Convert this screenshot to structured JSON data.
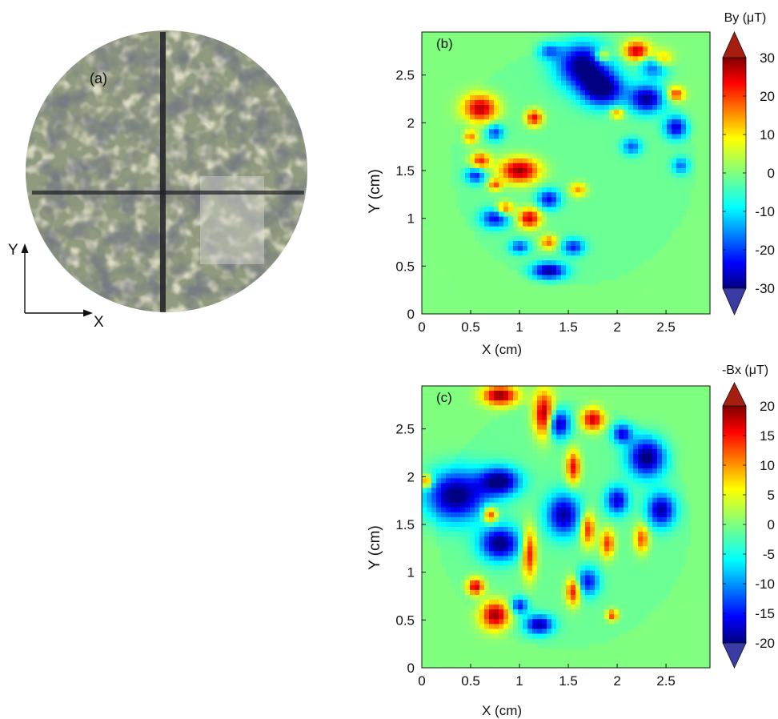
{
  "figure": {
    "panel_a": {
      "label": "(a)",
      "axis_x_label": "X",
      "axis_y_label": "Y"
    }
  },
  "chart_data": [
    {
      "type": "heatmap",
      "panel_label": "(b)",
      "title": "",
      "xlabel": "X (cm)",
      "ylabel": "Y (cm)",
      "xlim": [
        0,
        2.95
      ],
      "ylim": [
        0,
        2.95
      ],
      "x_ticks": [
        0,
        0.5,
        1,
        1.5,
        2,
        2.5
      ],
      "x_tick_labels": [
        "0",
        "0.5",
        "1",
        "1.5",
        "2",
        "2.5"
      ],
      "y_ticks": [
        0,
        0.5,
        1,
        1.5,
        2,
        2.5
      ],
      "y_tick_labels": [
        "0",
        "0.5",
        "1",
        "1.5",
        "2",
        "2.5"
      ],
      "colorbar": {
        "label": "By (μT)",
        "range": [
          -30,
          30
        ],
        "ticks": [
          -30,
          -20,
          -10,
          0,
          10,
          20,
          30
        ],
        "tick_labels": [
          "-30",
          "-20",
          "-10",
          "0",
          "10",
          "20",
          "30"
        ],
        "colormap": "jet",
        "extend": "both"
      },
      "background_value": 0,
      "sample_disk": {
        "center": [
          1.55,
          1.55
        ],
        "radius": 1.25
      },
      "features": [
        {
          "x": 0.6,
          "y": 2.15,
          "value": 28,
          "sx": 0.12,
          "sy": 0.1
        },
        {
          "x": 1.0,
          "y": 1.5,
          "value": 30,
          "sx": 0.14,
          "sy": 0.09
        },
        {
          "x": 1.15,
          "y": 2.05,
          "value": 24,
          "sx": 0.06,
          "sy": 0.06
        },
        {
          "x": 1.1,
          "y": 1.0,
          "value": 27,
          "sx": 0.08,
          "sy": 0.07
        },
        {
          "x": 0.6,
          "y": 1.6,
          "value": 22,
          "sx": 0.07,
          "sy": 0.06
        },
        {
          "x": 2.2,
          "y": 2.75,
          "value": 26,
          "sx": 0.09,
          "sy": 0.07
        },
        {
          "x": 2.45,
          "y": 2.65,
          "value": 24,
          "sx": 0.08,
          "sy": 0.07
        },
        {
          "x": 1.85,
          "y": 2.7,
          "value": 18,
          "sx": 0.06,
          "sy": 0.05
        },
        {
          "x": 0.85,
          "y": 1.1,
          "value": 20,
          "sx": 0.06,
          "sy": 0.05
        },
        {
          "x": 1.3,
          "y": 0.75,
          "value": 18,
          "sx": 0.06,
          "sy": 0.05
        },
        {
          "x": 2.6,
          "y": 2.3,
          "value": 20,
          "sx": 0.06,
          "sy": 0.05
        },
        {
          "x": 0.75,
          "y": 1.35,
          "value": 18,
          "sx": 0.05,
          "sy": 0.04
        },
        {
          "x": 0.5,
          "y": 1.85,
          "value": 16,
          "sx": 0.05,
          "sy": 0.05
        },
        {
          "x": 1.6,
          "y": 1.3,
          "value": 15,
          "sx": 0.06,
          "sy": 0.05
        },
        {
          "x": 2.0,
          "y": 2.1,
          "value": 16,
          "sx": 0.05,
          "sy": 0.04
        },
        {
          "x": 1.65,
          "y": 2.6,
          "value": -30,
          "sx": 0.18,
          "sy": 0.16
        },
        {
          "x": 1.85,
          "y": 2.35,
          "value": -30,
          "sx": 0.15,
          "sy": 0.12
        },
        {
          "x": 2.3,
          "y": 2.25,
          "value": -28,
          "sx": 0.12,
          "sy": 0.1
        },
        {
          "x": 2.4,
          "y": 2.6,
          "value": -26,
          "sx": 0.1,
          "sy": 0.08
        },
        {
          "x": 2.6,
          "y": 1.95,
          "value": -24,
          "sx": 0.08,
          "sy": 0.08
        },
        {
          "x": 1.3,
          "y": 0.45,
          "value": -28,
          "sx": 0.12,
          "sy": 0.06
        },
        {
          "x": 0.75,
          "y": 1.0,
          "value": -22,
          "sx": 0.1,
          "sy": 0.07
        },
        {
          "x": 0.55,
          "y": 1.45,
          "value": -20,
          "sx": 0.07,
          "sy": 0.06
        },
        {
          "x": 0.75,
          "y": 1.9,
          "value": -18,
          "sx": 0.06,
          "sy": 0.06
        },
        {
          "x": 1.3,
          "y": 1.2,
          "value": -22,
          "sx": 0.08,
          "sy": 0.07
        },
        {
          "x": 1.55,
          "y": 0.7,
          "value": -20,
          "sx": 0.08,
          "sy": 0.06
        },
        {
          "x": 1.0,
          "y": 0.7,
          "value": -18,
          "sx": 0.07,
          "sy": 0.05
        },
        {
          "x": 2.15,
          "y": 1.75,
          "value": -16,
          "sx": 0.07,
          "sy": 0.06
        },
        {
          "x": 1.3,
          "y": 2.75,
          "value": -14,
          "sx": 0.08,
          "sy": 0.06
        },
        {
          "x": 2.65,
          "y": 1.55,
          "value": -15,
          "sx": 0.06,
          "sy": 0.06
        }
      ]
    },
    {
      "type": "heatmap",
      "panel_label": "(c)",
      "title": "",
      "xlabel": "X (cm)",
      "ylabel": "Y (cm)",
      "xlim": [
        0,
        2.95
      ],
      "ylim": [
        0,
        2.95
      ],
      "x_ticks": [
        0,
        0.5,
        1,
        1.5,
        2,
        2.5
      ],
      "x_tick_labels": [
        "0",
        "0.5",
        "1",
        "1.5",
        "2",
        "2.5"
      ],
      "y_ticks": [
        0,
        0.5,
        1,
        1.5,
        2,
        2.5
      ],
      "y_tick_labels": [
        "0",
        "0.5",
        "1",
        "1.5",
        "2",
        "2.5"
      ],
      "colorbar": {
        "label": "-Bx (μT)",
        "range": [
          -20,
          20
        ],
        "ticks": [
          -20,
          -15,
          -10,
          -5,
          0,
          5,
          10,
          15,
          20
        ],
        "tick_labels": [
          "-20",
          "-15",
          "-10",
          "-5",
          "0",
          "5",
          "10",
          "15",
          "20"
        ],
        "colormap": "jet",
        "extend": "both"
      },
      "background_value": 0,
      "sample_disk": {
        "center": [
          1.45,
          1.5
        ],
        "radius": 1.3
      },
      "features": [
        {
          "x": 0.35,
          "y": 1.8,
          "value": -20,
          "sx": 0.22,
          "sy": 0.18
        },
        {
          "x": 0.8,
          "y": 1.95,
          "value": -20,
          "sx": 0.14,
          "sy": 0.1
        },
        {
          "x": 0.8,
          "y": 1.3,
          "value": -20,
          "sx": 0.14,
          "sy": 0.12
        },
        {
          "x": 1.45,
          "y": 1.6,
          "value": -18,
          "sx": 0.12,
          "sy": 0.15
        },
        {
          "x": 1.4,
          "y": 2.55,
          "value": -18,
          "sx": 0.08,
          "sy": 0.1
        },
        {
          "x": 2.3,
          "y": 2.2,
          "value": -20,
          "sx": 0.13,
          "sy": 0.14
        },
        {
          "x": 2.45,
          "y": 1.65,
          "value": -18,
          "sx": 0.1,
          "sy": 0.12
        },
        {
          "x": 2.0,
          "y": 1.75,
          "value": -16,
          "sx": 0.08,
          "sy": 0.1
        },
        {
          "x": 1.2,
          "y": 0.45,
          "value": -18,
          "sx": 0.1,
          "sy": 0.07
        },
        {
          "x": 1.7,
          "y": 0.9,
          "value": -14,
          "sx": 0.08,
          "sy": 0.1
        },
        {
          "x": 1.0,
          "y": 0.65,
          "value": -14,
          "sx": 0.06,
          "sy": 0.06
        },
        {
          "x": 2.05,
          "y": 2.45,
          "value": -15,
          "sx": 0.07,
          "sy": 0.07
        },
        {
          "x": 0.8,
          "y": 2.85,
          "value": 20,
          "sx": 0.12,
          "sy": 0.07
        },
        {
          "x": 1.25,
          "y": 2.65,
          "value": 20,
          "sx": 0.07,
          "sy": 0.16
        },
        {
          "x": 1.75,
          "y": 2.6,
          "value": 18,
          "sx": 0.08,
          "sy": 0.08
        },
        {
          "x": 0.75,
          "y": 0.55,
          "value": 20,
          "sx": 0.1,
          "sy": 0.1
        },
        {
          "x": 0.55,
          "y": 0.85,
          "value": 18,
          "sx": 0.06,
          "sy": 0.06
        },
        {
          "x": 1.1,
          "y": 1.2,
          "value": 16,
          "sx": 0.05,
          "sy": 0.18
        },
        {
          "x": 0.7,
          "y": 1.6,
          "value": 16,
          "sx": 0.05,
          "sy": 0.06
        },
        {
          "x": 1.55,
          "y": 0.8,
          "value": 16,
          "sx": 0.05,
          "sy": 0.1
        },
        {
          "x": 1.7,
          "y": 1.45,
          "value": 15,
          "sx": 0.05,
          "sy": 0.12
        },
        {
          "x": 1.9,
          "y": 1.3,
          "value": 14,
          "sx": 0.05,
          "sy": 0.1
        },
        {
          "x": 1.95,
          "y": 0.55,
          "value": 14,
          "sx": 0.04,
          "sy": 0.04
        },
        {
          "x": 1.55,
          "y": 2.1,
          "value": 16,
          "sx": 0.05,
          "sy": 0.12
        },
        {
          "x": 2.25,
          "y": 1.35,
          "value": 13,
          "sx": 0.05,
          "sy": 0.1
        },
        {
          "x": 0.05,
          "y": 1.95,
          "value": 15,
          "sx": 0.04,
          "sy": 0.05
        }
      ]
    }
  ]
}
